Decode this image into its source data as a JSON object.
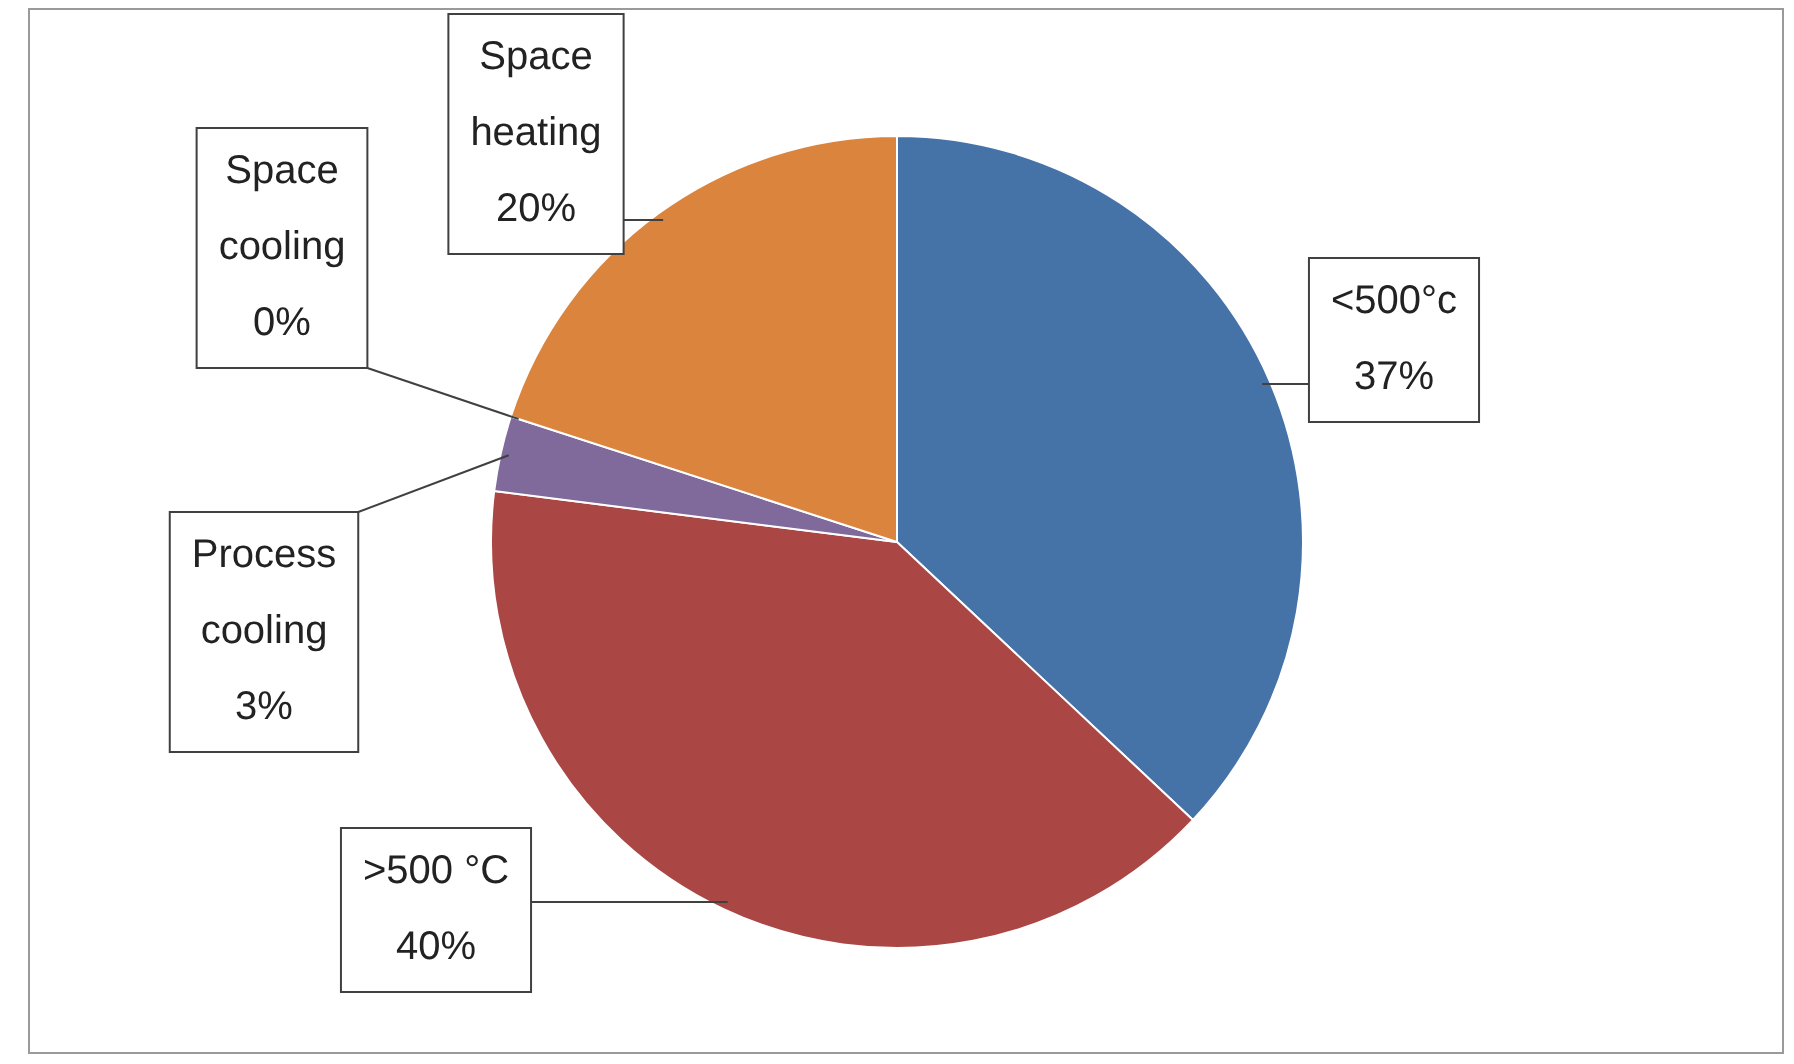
{
  "chart_data": {
    "type": "pie",
    "categories": [
      "<500°c",
      ">500 °C",
      "Process cooling",
      "Space cooling",
      "Space heating"
    ],
    "values": [
      37,
      40,
      3,
      0,
      20
    ],
    "colors": [
      "#4572a7",
      "#aa4643",
      "#80699b",
      "#3d96ae",
      "#db843d"
    ],
    "value_labels": [
      "37%",
      "40%",
      "3%",
      "0%",
      "20%"
    ],
    "legend": false
  }
}
